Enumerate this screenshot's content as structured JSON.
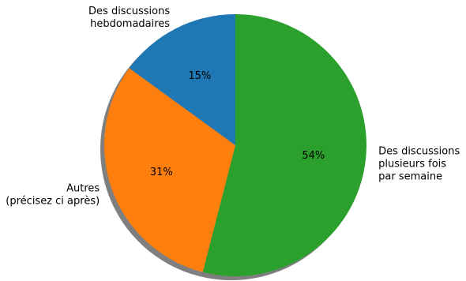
{
  "chart_data": {
    "type": "pie",
    "start_angle_deg": 90,
    "direction": "clockwise",
    "shadow": true,
    "slices": [
      {
        "label_lines": [
          "Des discussions",
          "plusieurs fois",
          "par semaine"
        ],
        "value": 54,
        "pct_label": "54%",
        "color": "#2ca02c",
        "label_align": "start"
      },
      {
        "label_lines": [
          "Autres",
          "(précisez ci après)"
        ],
        "value": 31,
        "pct_label": "31%",
        "color": "#ff7f0e",
        "label_align": "end"
      },
      {
        "label_lines": [
          "Des discussions",
          "hebdomadaires"
        ],
        "value": 15,
        "pct_label": "15%",
        "color": "#1f77b4",
        "label_align": "end"
      }
    ]
  }
}
